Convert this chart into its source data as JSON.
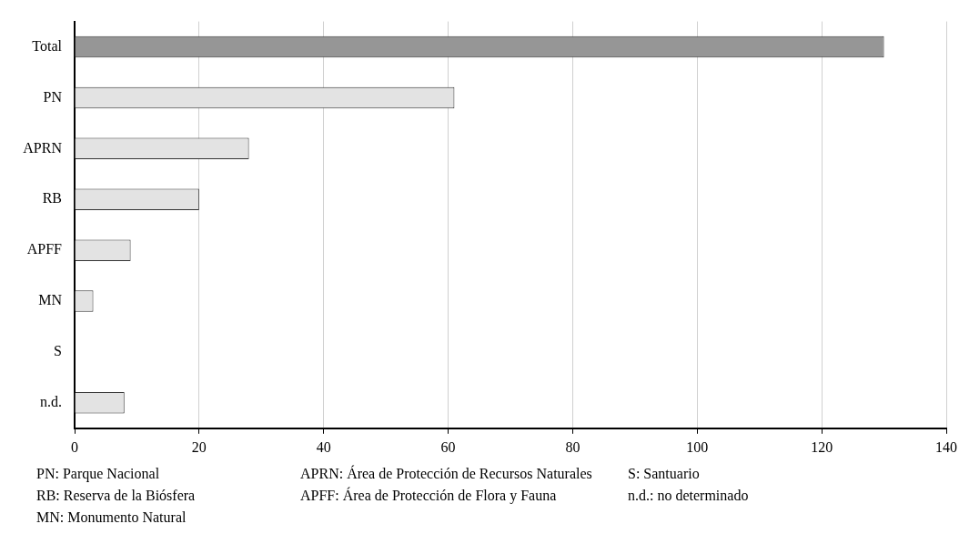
{
  "chart_data": {
    "type": "bar",
    "orientation": "horizontal",
    "categories": [
      "Total",
      "PN",
      "APRN",
      "RB",
      "APFF",
      "MN",
      "S",
      "n.d."
    ],
    "values": [
      130,
      61,
      28,
      20,
      9,
      3,
      0,
      8
    ],
    "colors": [
      "#969696",
      "#e3e3e3",
      "#e3e3e3",
      "#e3e3e3",
      "#e3e3e3",
      "#e3e3e3",
      "#e3e3e3",
      "#e3e3e3"
    ],
    "xlim": [
      0,
      140
    ],
    "xticks": [
      0,
      20,
      40,
      60,
      80,
      100,
      120,
      140
    ],
    "grid": "x",
    "legend": false,
    "annotations": [
      "PN: Parque Nacional",
      "APRN: Área de Protección de Recursos Naturales",
      "S: Santuario",
      "RB: Reserva de la Biósfera",
      "APFF: Área de Protección de Flora y Fauna",
      "n.d.: no determinado",
      "MN: Monumento Natural"
    ]
  }
}
